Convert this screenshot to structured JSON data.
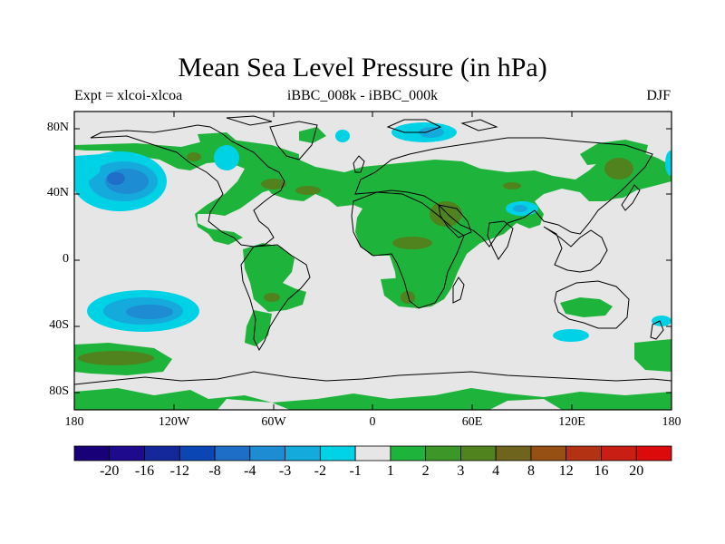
{
  "header": {
    "title": "Mean Sea Level Pressure (in hPa)",
    "left": "Expt = xlcoi-xlcoa",
    "center": "iBBC_008k - iBBC_000k",
    "right": "DJF"
  },
  "axes": {
    "lat_labels": [
      "80N",
      "40N",
      "0",
      "40S",
      "80S"
    ],
    "lon_labels": [
      "180",
      "120W",
      "60W",
      "0",
      "60E",
      "120E",
      "180"
    ]
  },
  "colorbar": {
    "labels": [
      "-20",
      "-16",
      "-12",
      "-8",
      "-4",
      "-3",
      "-2",
      "-1",
      "1",
      "2",
      "3",
      "4",
      "8",
      "12",
      "16",
      "20"
    ],
    "colors": [
      "#180078",
      "#1e0a8c",
      "#14289c",
      "#0a46b4",
      "#1e6ec8",
      "#1e8cd2",
      "#14aadc",
      "#00d2e6",
      "#e6e6e6",
      "#1eb43c",
      "#3c9628",
      "#50821e",
      "#6e641e",
      "#965014",
      "#b43214",
      "#c81e14",
      "#dc0a0a"
    ]
  },
  "map_colors": {
    "background": "#e6e6e6",
    "land_lines": "#000000"
  }
}
